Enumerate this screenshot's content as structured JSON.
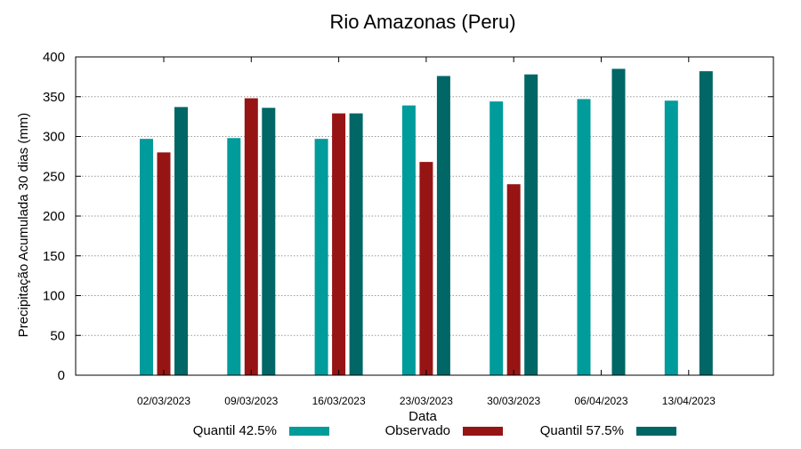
{
  "chart_data": {
    "type": "bar",
    "title": "Rio Amazonas (Peru)",
    "xlabel": "Data",
    "ylabel": "Precipitação Acumulada 30 dias (mm)",
    "ylim": [
      0,
      400
    ],
    "yticks": [
      0,
      50,
      100,
      150,
      200,
      250,
      300,
      350,
      400
    ],
    "grid": true,
    "legend_position": "bottom",
    "categories": [
      "02/03/2023",
      "09/03/2023",
      "16/03/2023",
      "23/03/2023",
      "30/03/2023",
      "06/04/2023",
      "13/04/2023"
    ],
    "series": [
      {
        "name": "Quantil 42.5%",
        "color": "#009b9b",
        "values": [
          297,
          298,
          297,
          339,
          344,
          347,
          345
        ]
      },
      {
        "name": "Observado",
        "color": "#961414",
        "values": [
          280,
          348,
          329,
          268,
          240,
          null,
          null
        ]
      },
      {
        "name": "Quantil 57.5%",
        "color": "#006666",
        "values": [
          337,
          336,
          329,
          376,
          378,
          385,
          382
        ]
      }
    ]
  }
}
